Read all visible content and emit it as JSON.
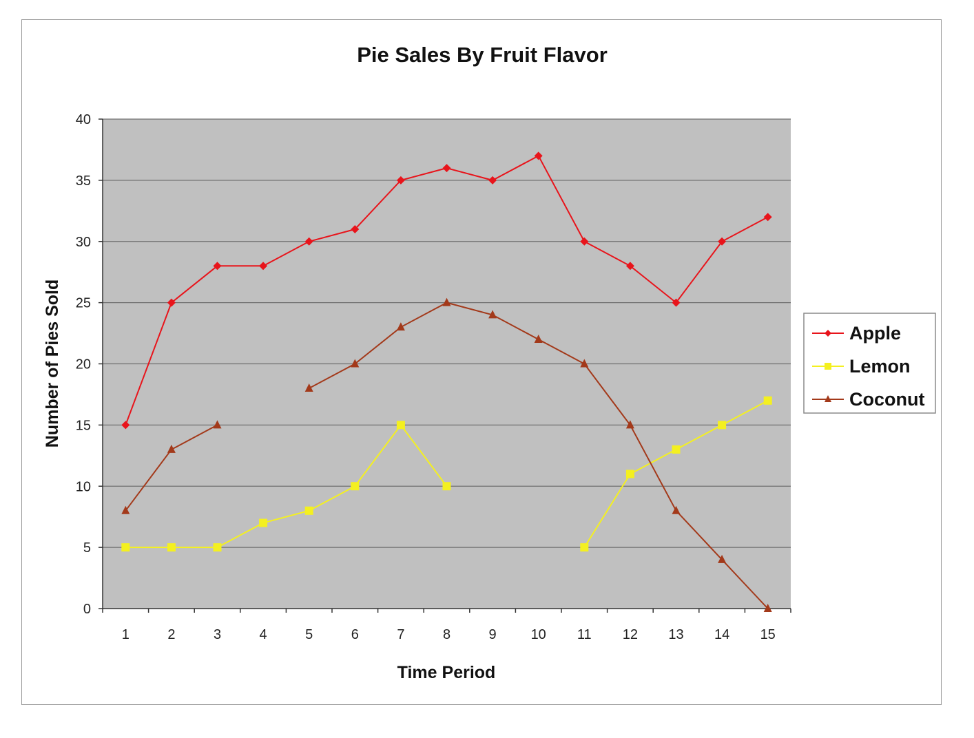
{
  "chart_data": {
    "type": "line",
    "title": "Pie Sales By Fruit Flavor",
    "xlabel": "Time Period",
    "ylabel": "Number of Pies Sold",
    "x": [
      1,
      2,
      3,
      4,
      5,
      6,
      7,
      8,
      9,
      10,
      11,
      12,
      13,
      14,
      15
    ],
    "ylim": [
      0,
      40
    ],
    "yticks": [
      0,
      5,
      10,
      15,
      20,
      25,
      30,
      35,
      40
    ],
    "grid": true,
    "legend_position": "right",
    "plot_background": "#c0c0c0",
    "series": [
      {
        "name": "Apple",
        "color": "#e8141b",
        "marker": "diamond",
        "values": [
          15,
          25,
          28,
          28,
          30,
          31,
          35,
          36,
          35,
          37,
          30,
          28,
          25,
          30,
          32
        ]
      },
      {
        "name": "Lemon",
        "color": "#f4f020",
        "marker": "square",
        "values": [
          5,
          5,
          5,
          7,
          8,
          10,
          15,
          10,
          null,
          null,
          5,
          11,
          13,
          15,
          17
        ]
      },
      {
        "name": "Coconut",
        "color": "#a3391a",
        "marker": "triangle",
        "values": [
          8,
          13,
          15,
          null,
          18,
          20,
          23,
          25,
          24,
          22,
          20,
          15,
          8,
          4,
          0
        ]
      }
    ]
  }
}
